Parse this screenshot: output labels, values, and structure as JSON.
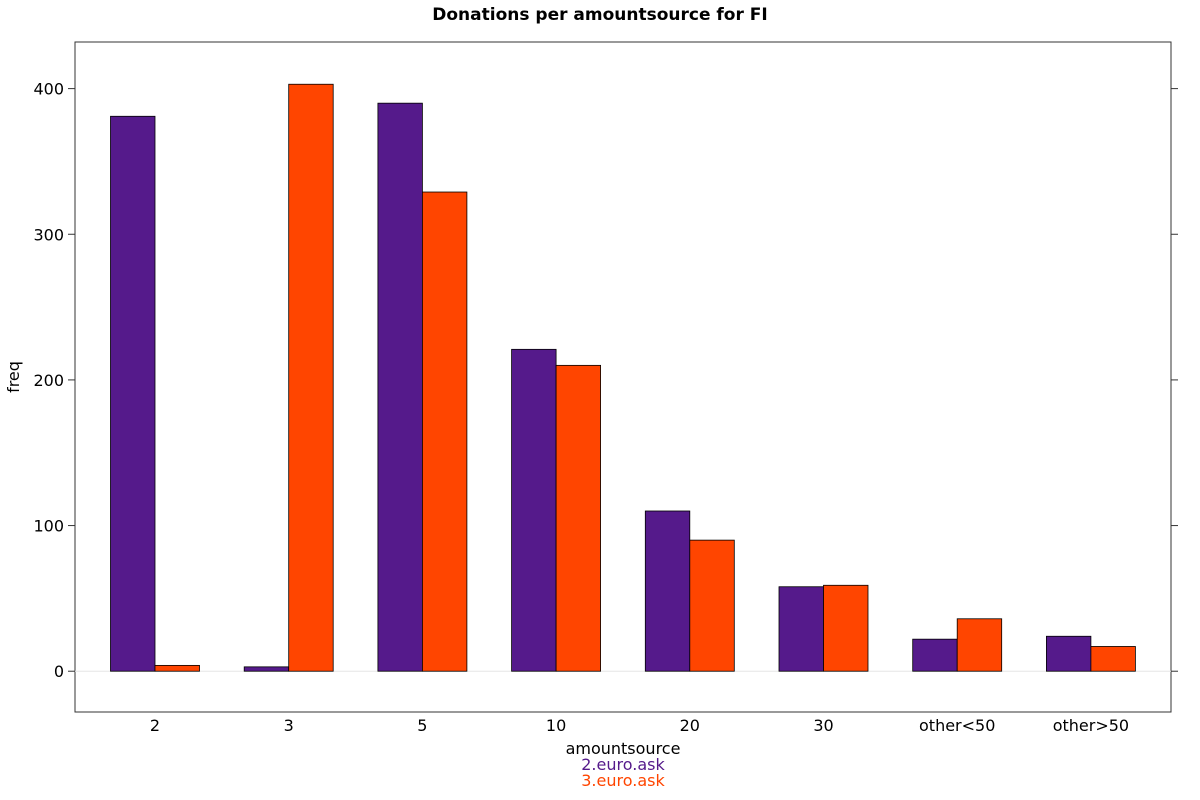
{
  "chart_data": {
    "type": "bar",
    "title": "Donations per amountsource for FI",
    "xlabel": "amountsource",
    "ylabel": "freq",
    "categories": [
      "2",
      "3",
      "5",
      "10",
      "20",
      "30",
      "other<50",
      "other>50"
    ],
    "series": [
      {
        "name": "2.euro.ask",
        "color": "#551A8B",
        "values": [
          381,
          3,
          390,
          221,
          110,
          58,
          22,
          24
        ]
      },
      {
        "name": "3.euro.ask",
        "color": "#FF4500",
        "values": [
          4,
          403,
          329,
          210,
          90,
          59,
          36,
          17
        ]
      }
    ],
    "ylim": [
      -28,
      432
    ],
    "yticks": [
      0,
      100,
      200,
      300,
      400
    ],
    "grid": false,
    "legend_position": "bottom"
  }
}
